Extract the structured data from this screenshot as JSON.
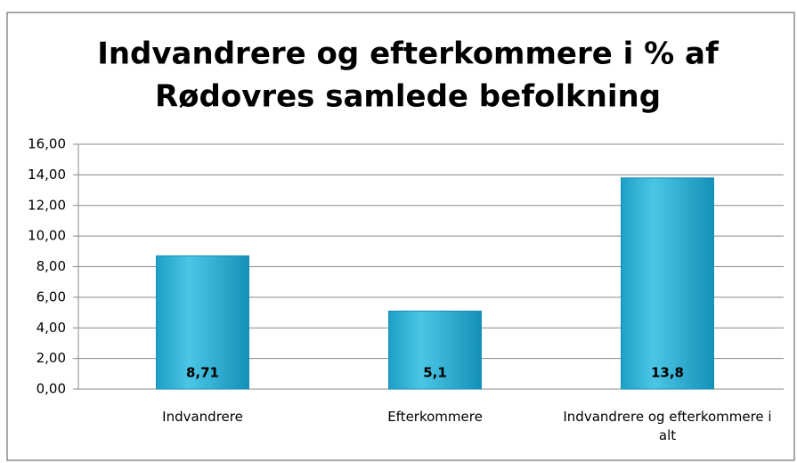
{
  "chart_data": {
    "type": "bar",
    "title": [
      "Indvandrere og efterkommere i % af",
      "Rødovres samlede befolkning"
    ],
    "categories": [
      "Indvandrere",
      "Efterkommere",
      "Indvandrere og efterkommere i alt"
    ],
    "values": [
      8.71,
      5.1,
      13.8
    ],
    "value_labels": [
      "8,71",
      "5,1",
      "13,8"
    ],
    "color": "#2fb2d8",
    "ylim": [
      0,
      16
    ],
    "yticks": [
      {
        "value": 0,
        "label": "0,00"
      },
      {
        "value": 2,
        "label": "2,00"
      },
      {
        "value": 4,
        "label": "4,00"
      },
      {
        "value": 6,
        "label": "6,00"
      },
      {
        "value": 8,
        "label": "8,00"
      },
      {
        "value": 10,
        "label": "10,00"
      },
      {
        "value": 12,
        "label": "12,00"
      },
      {
        "value": 14,
        "label": "14,00"
      },
      {
        "value": 16,
        "label": "16,00"
      }
    ],
    "grid": true
  }
}
